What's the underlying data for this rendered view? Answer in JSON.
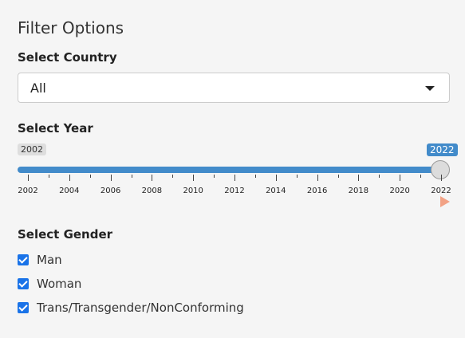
{
  "panel": {
    "title": "Filter Options"
  },
  "country": {
    "label": "Select Country",
    "selected": "All"
  },
  "year": {
    "label": "Select Year",
    "min_label": "2002",
    "max_label": "2022",
    "min": 2002,
    "max": 2022,
    "value": 2022,
    "ticks": [
      "2002",
      "2004",
      "2006",
      "2008",
      "2010",
      "2012",
      "2014",
      "2016",
      "2018",
      "2020",
      "2022"
    ]
  },
  "gender": {
    "label": "Select Gender",
    "options": [
      {
        "label": "Man",
        "checked": true
      },
      {
        "label": "Woman",
        "checked": true
      },
      {
        "label": "Trans/Transgender/NonConforming",
        "checked": true
      }
    ]
  },
  "colors": {
    "accent": "#428bca",
    "checkbox": "#1a73e8",
    "play": "#f2a285"
  }
}
